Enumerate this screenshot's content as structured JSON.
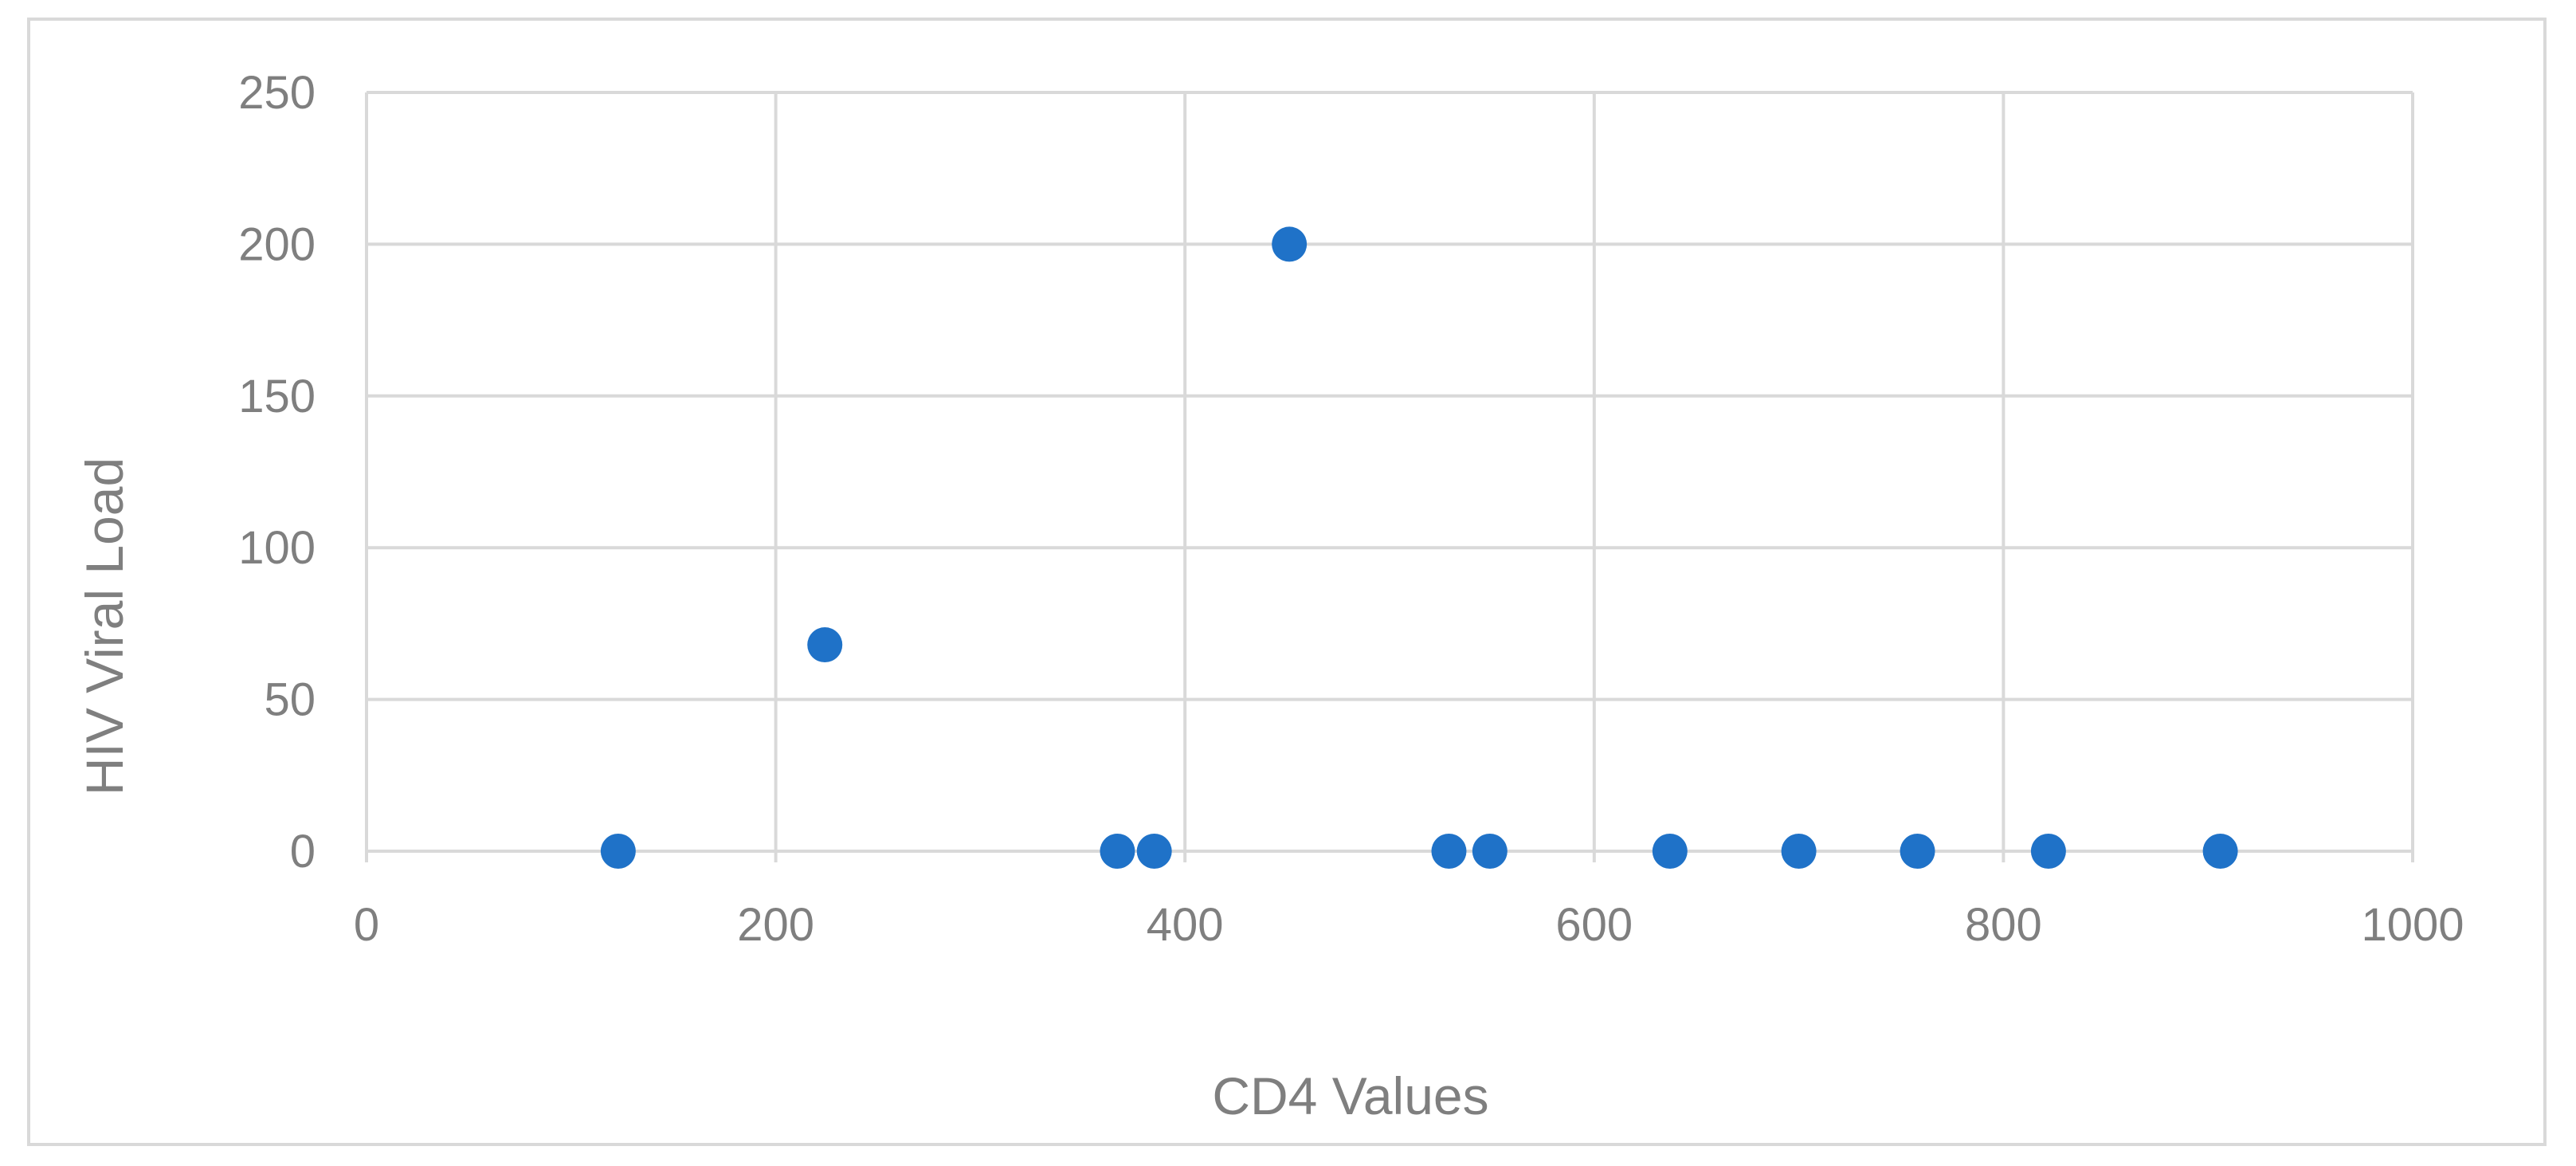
{
  "chart_data": {
    "type": "scatter",
    "title": "",
    "xlabel": "CD4 Values",
    "ylabel": "HIV Viral Load",
    "xlim": [
      0,
      1000
    ],
    "ylim": [
      0,
      250
    ],
    "xticks": [
      0,
      200,
      400,
      600,
      800,
      1000
    ],
    "yticks": [
      0,
      50,
      100,
      150,
      200,
      250
    ],
    "grid": true,
    "legend": "none",
    "colors": {
      "point": "#1f72c8",
      "grid": "#d9d9d9",
      "text": "#7f7f7f",
      "frame": "#d9d9d9"
    },
    "series": [
      {
        "x": [
          123,
          224,
          367,
          385,
          451,
          529,
          549,
          637,
          700,
          758,
          822,
          906
        ],
        "y": [
          0,
          68,
          0,
          0,
          200,
          0,
          0,
          0,
          0,
          0,
          0,
          0
        ]
      }
    ]
  }
}
